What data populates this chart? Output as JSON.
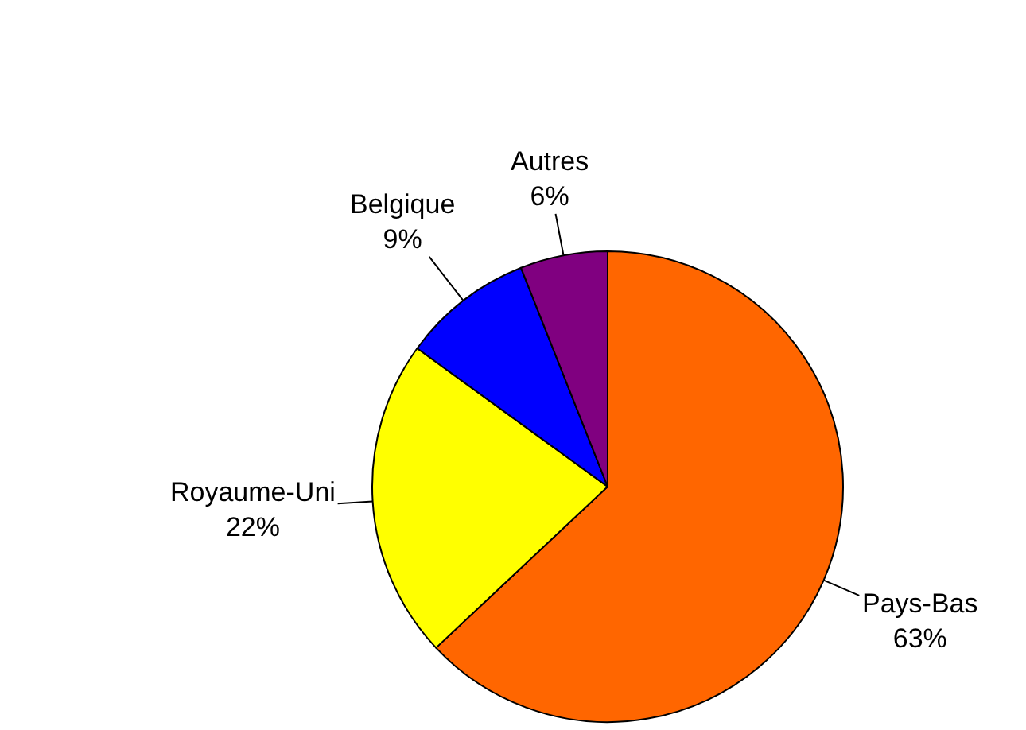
{
  "chart_data": {
    "type": "pie",
    "categories": [
      "Pays-Bas",
      "Royaume-Uni",
      "Belgique",
      "Autres"
    ],
    "values": [
      63,
      22,
      9,
      6
    ],
    "colors": [
      "#ff6600",
      "#ffff00",
      "#0000ff",
      "#800080"
    ],
    "value_labels": [
      "63%",
      "22%",
      "9%",
      "6%"
    ]
  }
}
